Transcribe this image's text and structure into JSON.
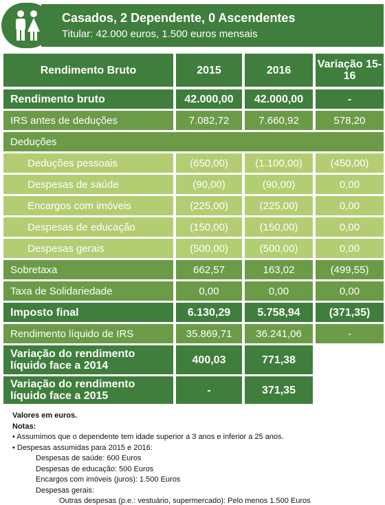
{
  "header": {
    "title": "Casados, 2 Dependente, 0 Ascendentes",
    "subtitle": "Titular: 42.000 euros, 1.500 euros mensais"
  },
  "table": {
    "columns": [
      "Rendimento Bruto",
      "2015",
      "2016",
      "Variação 15-16"
    ],
    "rows": [
      [
        "Rendimento bruto",
        "42.000,00",
        "42.000,00",
        "-"
      ],
      [
        "IRS antes de deduções",
        "7.082,72",
        "7.660,92",
        "578,20"
      ],
      [
        "Deduções"
      ],
      [
        "Deduções pessoais",
        "(650,00)",
        "(1.100,00)",
        "(450,00)"
      ],
      [
        "Despesas de saúde",
        "(90,00)",
        "(90,00)",
        "0,00"
      ],
      [
        "Encargos com imóveis",
        "(225,00)",
        "(225,00)",
        "0,00"
      ],
      [
        "Despesas de educação",
        "(150,00)",
        "(150,00)",
        "0,00"
      ],
      [
        "Despesas gerais",
        "(500,00)",
        "(500,00)",
        "0,00"
      ],
      [
        "Sobretaxa",
        "662,57",
        "163,02",
        "(499,55)"
      ],
      [
        "Taxa de Solidariedade",
        "0,00",
        "0,00",
        "0,00"
      ],
      [
        "Imposto final",
        "6.130,29",
        "5.758,94",
        "(371,35)"
      ],
      [
        "Rendimento líquido de IRS",
        "35.869,71",
        "36.241,06",
        "-"
      ],
      [
        "Variação do rendimento líquido face a 2014",
        "400,03",
        "771,38"
      ],
      [
        "Variação do rendimento líquido face a 2015",
        "-",
        "371,35"
      ]
    ]
  },
  "notes": [
    "Valores em euros.",
    "Notas:",
    "• Assumimos que o dependente tem idade superior a 3 anos e inferior a 25 anos.",
    "• Despesas assumidas para 2015 e 2016:",
    "Despesas de saúde: 600 Euros",
    "Despesas de educação: 500 Euros",
    "Encargos com imóveis (juros): 1.500 Euros",
    "Despesas gerais:",
    "Outras despesas (p.e.: vestuário, supermercado): Pelo menos 1.500 Euros"
  ]
}
